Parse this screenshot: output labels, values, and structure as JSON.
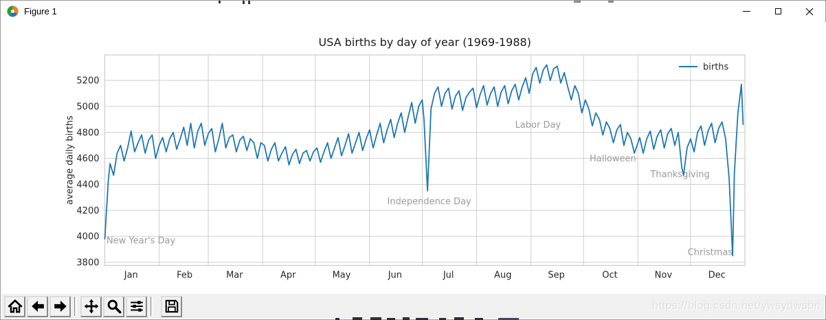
{
  "window": {
    "title": "Figure 1"
  },
  "toolbar": {
    "buttons": [
      "home",
      "back",
      "forward",
      "pan",
      "zoom-to-rect",
      "configure-subplots",
      "save"
    ]
  },
  "watermark": "https://blog.csdn.net/ywsydwsbn",
  "chart_data": {
    "type": "line",
    "title": "USA births by day of year (1969-1988)",
    "xlabel": "",
    "ylabel": "average daily births",
    "grid": true,
    "legend": {
      "position": "upper right",
      "entries": [
        {
          "label": "births",
          "color": "#1f77b4"
        }
      ]
    },
    "line_color": "#1f77b4",
    "grid_color": "#cfcfcf",
    "frame_color": "#cccccc",
    "tick_color": "#262626",
    "annotation_color": "#9a9a9a",
    "xlim_days": [
      0,
      365
    ],
    "ylim": [
      3776,
      5396
    ],
    "y_ticks": [
      3800,
      4000,
      4200,
      4400,
      4600,
      4800,
      5000,
      5200
    ],
    "x_tick_labels": [
      "Jan",
      "Feb",
      "Mar",
      "Apr",
      "May",
      "Jun",
      "Jul",
      "Aug",
      "Sep",
      "Oct",
      "Nov",
      "Dec"
    ],
    "x_tick_label_days": [
      15,
      45.5,
      74,
      104.5,
      135,
      165.5,
      196,
      227,
      257.5,
      288,
      318.5,
      349
    ],
    "month_start_days": [
      0,
      31,
      59,
      90,
      120,
      151,
      181,
      212,
      243,
      273,
      304,
      334
    ],
    "annotations": [
      {
        "text": "New Year's Day",
        "day": 1,
        "value": 3970,
        "align": "left"
      },
      {
        "text": "Independence Day",
        "day": 185,
        "value": 4270,
        "align": "center"
      },
      {
        "text": "Labor Day",
        "day": 247,
        "value": 4860,
        "align": "center"
      },
      {
        "text": "Halloween",
        "day": 303,
        "value": 4600,
        "align": "right"
      },
      {
        "text": "Thanksgiving",
        "day": 328,
        "value": 4480,
        "align": "center"
      },
      {
        "text": "Christmas",
        "day": 358,
        "value": 3880,
        "align": "right"
      }
    ],
    "series": [
      {
        "name": "births",
        "color": "#1f77b4",
        "points": [
          [
            0,
            3980
          ],
          [
            2,
            4430
          ],
          [
            3,
            4560
          ],
          [
            5,
            4470
          ],
          [
            7,
            4640
          ],
          [
            9,
            4700
          ],
          [
            11,
            4580
          ],
          [
            13,
            4680
          ],
          [
            15,
            4810
          ],
          [
            17,
            4650
          ],
          [
            19,
            4720
          ],
          [
            21,
            4780
          ],
          [
            23,
            4640
          ],
          [
            25,
            4740
          ],
          [
            27,
            4780
          ],
          [
            29,
            4600
          ],
          [
            31,
            4700
          ],
          [
            33,
            4760
          ],
          [
            35,
            4650
          ],
          [
            37,
            4750
          ],
          [
            39,
            4800
          ],
          [
            41,
            4670
          ],
          [
            43,
            4750
          ],
          [
            45,
            4840
          ],
          [
            47,
            4700
          ],
          [
            49,
            4870
          ],
          [
            51,
            4680
          ],
          [
            53,
            4810
          ],
          [
            55,
            4870
          ],
          [
            57,
            4700
          ],
          [
            59,
            4790
          ],
          [
            61,
            4830
          ],
          [
            63,
            4650
          ],
          [
            65,
            4750
          ],
          [
            67,
            4870
          ],
          [
            69,
            4680
          ],
          [
            71,
            4760
          ],
          [
            73,
            4780
          ],
          [
            75,
            4650
          ],
          [
            77,
            4740
          ],
          [
            79,
            4770
          ],
          [
            81,
            4660
          ],
          [
            83,
            4750
          ],
          [
            85,
            4720
          ],
          [
            87,
            4600
          ],
          [
            89,
            4720
          ],
          [
            91,
            4700
          ],
          [
            93,
            4580
          ],
          [
            95,
            4670
          ],
          [
            97,
            4720
          ],
          [
            99,
            4580
          ],
          [
            101,
            4640
          ],
          [
            103,
            4690
          ],
          [
            105,
            4550
          ],
          [
            107,
            4630
          ],
          [
            109,
            4670
          ],
          [
            111,
            4560
          ],
          [
            113,
            4640
          ],
          [
            115,
            4660
          ],
          [
            117,
            4580
          ],
          [
            119,
            4650
          ],
          [
            121,
            4680
          ],
          [
            123,
            4570
          ],
          [
            125,
            4650
          ],
          [
            127,
            4720
          ],
          [
            129,
            4600
          ],
          [
            131,
            4680
          ],
          [
            133,
            4760
          ],
          [
            135,
            4620
          ],
          [
            137,
            4700
          ],
          [
            139,
            4790
          ],
          [
            141,
            4640
          ],
          [
            143,
            4720
          ],
          [
            145,
            4800
          ],
          [
            147,
            4660
          ],
          [
            149,
            4750
          ],
          [
            151,
            4820
          ],
          [
            153,
            4680
          ],
          [
            155,
            4780
          ],
          [
            157,
            4870
          ],
          [
            159,
            4720
          ],
          [
            161,
            4820
          ],
          [
            163,
            4900
          ],
          [
            165,
            4760
          ],
          [
            167,
            4870
          ],
          [
            169,
            4950
          ],
          [
            171,
            4800
          ],
          [
            173,
            4920
          ],
          [
            175,
            5030
          ],
          [
            177,
            4870
          ],
          [
            179,
            5000
          ],
          [
            181,
            5050
          ],
          [
            182,
            4900
          ],
          [
            184,
            4350
          ],
          [
            186,
            4980
          ],
          [
            188,
            5100
          ],
          [
            190,
            5150
          ],
          [
            192,
            5000
          ],
          [
            194,
            5100
          ],
          [
            196,
            5140
          ],
          [
            198,
            4980
          ],
          [
            200,
            5080
          ],
          [
            202,
            5120
          ],
          [
            204,
            4970
          ],
          [
            206,
            5070
          ],
          [
            208,
            5110
          ],
          [
            210,
            5140
          ],
          [
            212,
            4990
          ],
          [
            214,
            5090
          ],
          [
            216,
            5160
          ],
          [
            218,
            5010
          ],
          [
            220,
            5100
          ],
          [
            222,
            5150
          ],
          [
            224,
            5000
          ],
          [
            226,
            5110
          ],
          [
            228,
            5160
          ],
          [
            230,
            5020
          ],
          [
            232,
            5120
          ],
          [
            234,
            5170
          ],
          [
            236,
            5050
          ],
          [
            238,
            5150
          ],
          [
            240,
            5220
          ],
          [
            242,
            5100
          ],
          [
            244,
            5250
          ],
          [
            246,
            5300
          ],
          [
            248,
            5180
          ],
          [
            250,
            5280
          ],
          [
            252,
            5320
          ],
          [
            254,
            5200
          ],
          [
            256,
            5290
          ],
          [
            258,
            5310
          ],
          [
            260,
            5180
          ],
          [
            262,
            5260
          ],
          [
            264,
            5150
          ],
          [
            266,
            5050
          ],
          [
            268,
            5160
          ],
          [
            270,
            5100
          ],
          [
            272,
            4950
          ],
          [
            274,
            5050
          ],
          [
            276,
            4980
          ],
          [
            278,
            4850
          ],
          [
            280,
            4950
          ],
          [
            282,
            4900
          ],
          [
            284,
            4780
          ],
          [
            286,
            4880
          ],
          [
            288,
            4830
          ],
          [
            290,
            4720
          ],
          [
            292,
            4820
          ],
          [
            294,
            4860
          ],
          [
            296,
            4700
          ],
          [
            298,
            4800
          ],
          [
            300,
            4750
          ],
          [
            302,
            4640
          ],
          [
            303,
            4680
          ],
          [
            305,
            4760
          ],
          [
            307,
            4640
          ],
          [
            309,
            4750
          ],
          [
            311,
            4810
          ],
          [
            313,
            4670
          ],
          [
            315,
            4770
          ],
          [
            317,
            4820
          ],
          [
            319,
            4680
          ],
          [
            321,
            4790
          ],
          [
            323,
            4830
          ],
          [
            325,
            4700
          ],
          [
            327,
            4800
          ],
          [
            329,
            4530
          ],
          [
            330,
            4470
          ],
          [
            332,
            4680
          ],
          [
            334,
            4750
          ],
          [
            336,
            4650
          ],
          [
            338,
            4800
          ],
          [
            340,
            4850
          ],
          [
            342,
            4700
          ],
          [
            344,
            4810
          ],
          [
            346,
            4870
          ],
          [
            348,
            4720
          ],
          [
            350,
            4830
          ],
          [
            352,
            4880
          ],
          [
            354,
            4750
          ],
          [
            356,
            4450
          ],
          [
            358,
            3850
          ],
          [
            359,
            4490
          ],
          [
            361,
            4950
          ],
          [
            363,
            5170
          ],
          [
            364,
            4860
          ]
        ]
      }
    ]
  }
}
